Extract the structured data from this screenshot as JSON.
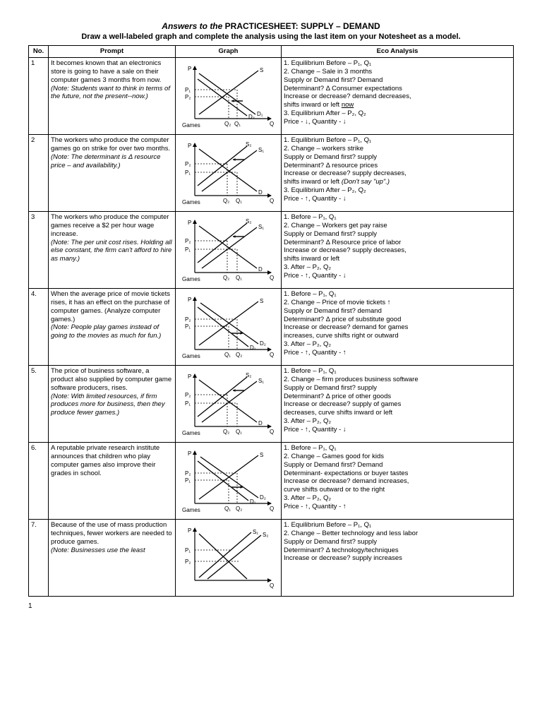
{
  "title_italic": "Answers to the",
  "title_rest": " PRACTICESHEET:  SUPPLY – DEMAND",
  "subtitle": "Draw a well-labeled graph and complete the analysis using the last item on your Notesheet as a model.",
  "headers": {
    "no": "No.",
    "prompt": "Prompt",
    "graph": "Graph",
    "analysis": "Eco Analysis"
  },
  "rows": [
    {
      "no": "1",
      "prompt": "It becomes known that an electronics store is going to have a sale on their computer games 3 months from now.",
      "note": "(Note: Students want to think in terms of the future, not the present--now.)",
      "graph": {
        "type": "demand-left",
        "xlabel": "Games",
        "q1": "Q₁",
        "q2": "Q₂",
        "p1": "P₁",
        "p2": "P₂",
        "d1": "D₁",
        "d2": "D₂",
        "s": "S"
      },
      "analysis": [
        "1.  Equilibrium Before – P₁, Q₁",
        "2.  Change – Sale in 3 months",
        "     Supply or Demand first? Demand",
        "     Determinant?  Δ Consumer expectations",
        "     Increase or decrease? demand decreases,",
        "       shifts inward or left now",
        "3.  Equilibrium After – P₂, Q₂",
        "     Price - ↓, Quantity - ↓"
      ]
    },
    {
      "no": "2",
      "prompt": "The workers who produce the computer games go on strike for over two months.",
      "note": "(Note: The determinant is Δ resource price – and availability.)",
      "graph": {
        "type": "supply-left",
        "xlabel": "Games",
        "q1": "Q₁",
        "q2": "Q₂",
        "p1": "P₁",
        "p2": "P₂",
        "s1": "S₁",
        "s2": "S₂",
        "d": "D"
      },
      "analysis": [
        "1.  Equilibrium Before – P₁, Q₁",
        "2.  Change – workers strike",
        "     Supply or Demand first?  supply",
        "     Determinant? Δ resource prices",
        "     Increase or decrease?  supply decreases,",
        "       shifts inward or left  (Don't say \"up\".)",
        "3.  Equilibrium After – P₂, Q₂",
        "      Price - ↑, Quantity - ↓"
      ]
    },
    {
      "no": "3",
      "prompt": "The workers who produce the computer games receive a $2 per hour wage increase.",
      "note": "(Note: The per unit cost rises. Holding all else constant, the firm can't afford to hire as many.)",
      "graph": {
        "type": "supply-left",
        "xlabel": "Games",
        "q1": "Q₁",
        "q2": "Q₂",
        "p1": "P₁",
        "p2": "P₂",
        "s1": "S₁",
        "s2": "S₂",
        "d": "D"
      },
      "analysis": [
        "1.  Before – P₁, Q₁",
        "2.  Change –  Workers get pay raise",
        "     Supply or Demand first?  supply",
        "     Determinant?  Δ Resource price of labor",
        "     Increase or decrease?  supply decreases,",
        "       shifts inward or left",
        "3.  After – P₂, Q₂",
        "      Price - ↑, Quantity - ↓"
      ]
    },
    {
      "no": "4.",
      "prompt": "When the average price of movie tickets rises, it has an effect on the purchase of computer games. (Analyze computer games.)",
      "note": "(Note: People play games instead of going to the movies as much for fun.)",
      "graph": {
        "type": "demand-right",
        "xlabel": "Games",
        "q1": "Q₁",
        "q2": "Q₂",
        "p1": "P₁",
        "p2": "P₂",
        "d1": "D₁",
        "d2": "D₂",
        "s": "S"
      },
      "analysis": [
        "1.  Before – P₁, Q₁",
        "2.  Change – Price of movie tickets ↑",
        "     Supply or Demand first?  demand",
        "     Determinant?  Δ price of substitute good",
        "     Increase or decrease? demand for games",
        "        increases, curve shifts right or outward",
        "3.  After – P₂, Q₂",
        "     Price - ↑, Quantity - ↑"
      ]
    },
    {
      "no": "5.",
      "prompt": "The price of business software, a product also supplied by computer game software producers, rises.",
      "note": "(Note: With limited resources, if firm produces more for business, then they produce fewer games.)",
      "graph": {
        "type": "supply-left",
        "xlabel": "Games",
        "q1": "Q₁",
        "q2": "Q₂",
        "p1": "P₁",
        "p2": "P₂",
        "s1": "S₁",
        "s2": "S₂",
        "d": "D"
      },
      "analysis": [
        "1.  Before – P₁, Q₁",
        "2.  Change – firm produces business software",
        "     Supply or Demand first? supply",
        "     Determinant?  Δ price of other goods",
        "     Increase or decrease? supply of games",
        "       decreases, curve shifts inward or left",
        "3.  After – P₂, Q₂",
        "     Price - ↑, Quantity - ↓"
      ]
    },
    {
      "no": "6.",
      "prompt": "A reputable private research institute announces that children who play computer games also improve their grades in school.",
      "note": "",
      "graph": {
        "type": "demand-right",
        "xlabel": "Games",
        "q1": "Q₁",
        "q2": "Q₂",
        "p1": "P₁",
        "p2": "P₂",
        "d1": "D₁",
        "d2": "D₂",
        "s": "S"
      },
      "analysis": [
        "1.  Before – P₁, Q₁",
        "2.  Change –  Games good for kids",
        "     Supply or Demand first?  Demand",
        "     Determinant- expectations or buyer tastes",
        "     Increase or decrease? demand increases,",
        "       curve shifts outward or to the right",
        "3.  After – P₂, Q₂",
        "     Price - ↑, Quantity - ↑"
      ]
    },
    {
      "no": "7.",
      "prompt": "Because of the use of mass production techniques, fewer workers are needed to produce games.",
      "note": "(Note: Businesses use the least",
      "graph": {
        "type": "supply-right-partial",
        "xlabel": "",
        "q1": "",
        "q2": "",
        "p1": "P₁",
        "p2": "P₂",
        "s1": "S₁",
        "s2": "S₂",
        "d": ""
      },
      "analysis": [
        "1.  Equilibrium Before – P₁, Q₁",
        "2.  Change – Better technology and less labor",
        "     Supply or Demand first?  supply",
        "     Determinant? Δ technology/techniques",
        "     Increase or decrease? supply increases"
      ]
    }
  ],
  "pagenum": "1",
  "chart_style": {
    "width": 140,
    "height": 100,
    "axis_color": "#000",
    "line_color": "#000",
    "font_size": 8
  }
}
